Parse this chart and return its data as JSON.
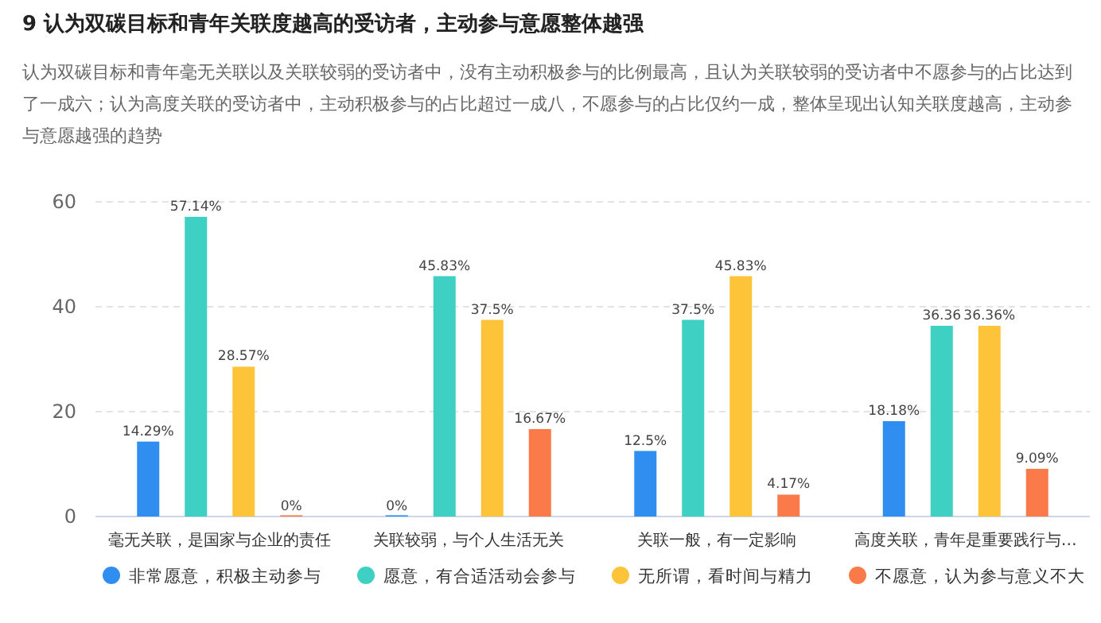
{
  "chart_data": {
    "type": "bar",
    "title": "9 认为双碳目标和青年关联度越高的受访者，主动参与意愿整体越强",
    "subtitle": "认为双碳目标和青年毫无关联以及关联较弱的受访者中，没有主动积极参与的比例最高，且认为关联较弱的受访者中不愿参与的占比达到了一成六；认为高度关联的受访者中，主动积极参与的占比超过一成八，不愿参与的占比仅约一成，整体呈现出认知关联度越高，主动参与意愿越强的趋势",
    "categories": [
      "毫无关联，是国家与企业的责任",
      "关联较弱，与个人生活无关",
      "关联一般，有一定影响",
      "高度关联，青年是重要践行与…"
    ],
    "series": [
      {
        "name": "非常愿意，积极主动参与",
        "color": "#2f8ef0",
        "values": [
          14.29,
          0,
          12.5,
          18.18
        ],
        "value_labels": [
          "14.29%",
          "0%",
          "12.5%",
          "18.18%"
        ]
      },
      {
        "name": "愿意，有合适活动会参与",
        "color": "#3fd0c4",
        "values": [
          57.14,
          45.83,
          37.5,
          36.36
        ],
        "value_labels": [
          "57.14%",
          "45.83%",
          "37.5%",
          "36.36"
        ]
      },
      {
        "name": "无所谓，看时间与精力",
        "color": "#fdc43a",
        "values": [
          28.57,
          37.5,
          45.83,
          36.36
        ],
        "value_labels": [
          "28.57%",
          "37.5%",
          "45.83%",
          "36.36%"
        ]
      },
      {
        "name": "不愿意，认为参与意义不大",
        "color": "#fa7a4a",
        "values": [
          0,
          16.67,
          4.17,
          9.09
        ],
        "value_labels": [
          "0%",
          "16.67%",
          "4.17%",
          "9.09%"
        ]
      }
    ],
    "ylim": [
      0,
      60
    ],
    "yticks": [
      0,
      20,
      40,
      60
    ],
    "grid": "y",
    "legend": "bottom"
  }
}
